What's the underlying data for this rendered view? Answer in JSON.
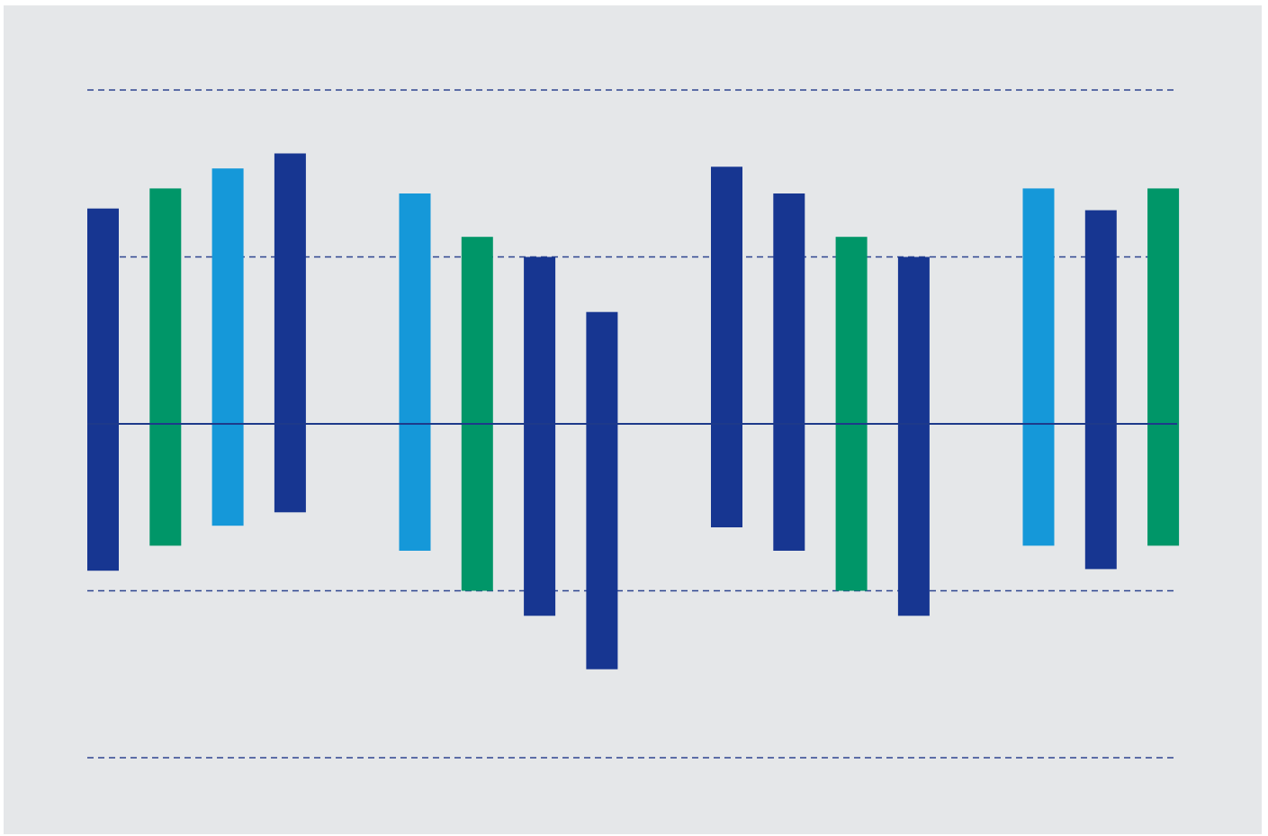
{
  "chart_data": {
    "type": "bar",
    "subtype": "floating-range",
    "title": "",
    "xlabel": "",
    "ylabel": "",
    "ylim": [
      -2,
      2
    ],
    "gridlines": [
      -2,
      -1,
      1,
      2
    ],
    "zero_line": 0,
    "grid": true,
    "legend": "none",
    "colors": {
      "dark_blue": "#173691",
      "green": "#009668",
      "light_blue": "#1598d9",
      "zero_line": "#1e3a8a",
      "grid_line": "#2e4590",
      "background": "#e5e7e9"
    },
    "groups": [
      {
        "bars": [
          {
            "color": "dark_blue",
            "low": -0.88,
            "high": 1.29
          },
          {
            "color": "green",
            "low": -0.73,
            "high": 1.41
          },
          {
            "color": "light_blue",
            "low": -0.61,
            "high": 1.53
          },
          {
            "color": "dark_blue",
            "low": -0.53,
            "high": 1.62
          }
        ]
      },
      {
        "bars": [
          {
            "color": "light_blue",
            "low": -0.76,
            "high": 1.38
          },
          {
            "color": "green",
            "low": -1.0,
            "high": 1.12
          },
          {
            "color": "dark_blue",
            "low": -1.15,
            "high": 1.0
          },
          {
            "color": "dark_blue",
            "low": -1.47,
            "high": 0.67
          }
        ]
      },
      {
        "bars": [
          {
            "color": "dark_blue",
            "low": -0.62,
            "high": 1.54
          },
          {
            "color": "dark_blue",
            "low": -0.76,
            "high": 1.38
          },
          {
            "color": "green",
            "low": -1.0,
            "high": 1.12
          },
          {
            "color": "dark_blue",
            "low": -1.15,
            "high": 1.0
          }
        ]
      },
      {
        "bars": [
          {
            "color": "light_blue",
            "low": -0.73,
            "high": 1.41
          },
          {
            "color": "dark_blue",
            "low": -0.87,
            "high": 1.28
          },
          {
            "color": "green",
            "low": -0.73,
            "high": 1.41
          }
        ]
      }
    ]
  }
}
